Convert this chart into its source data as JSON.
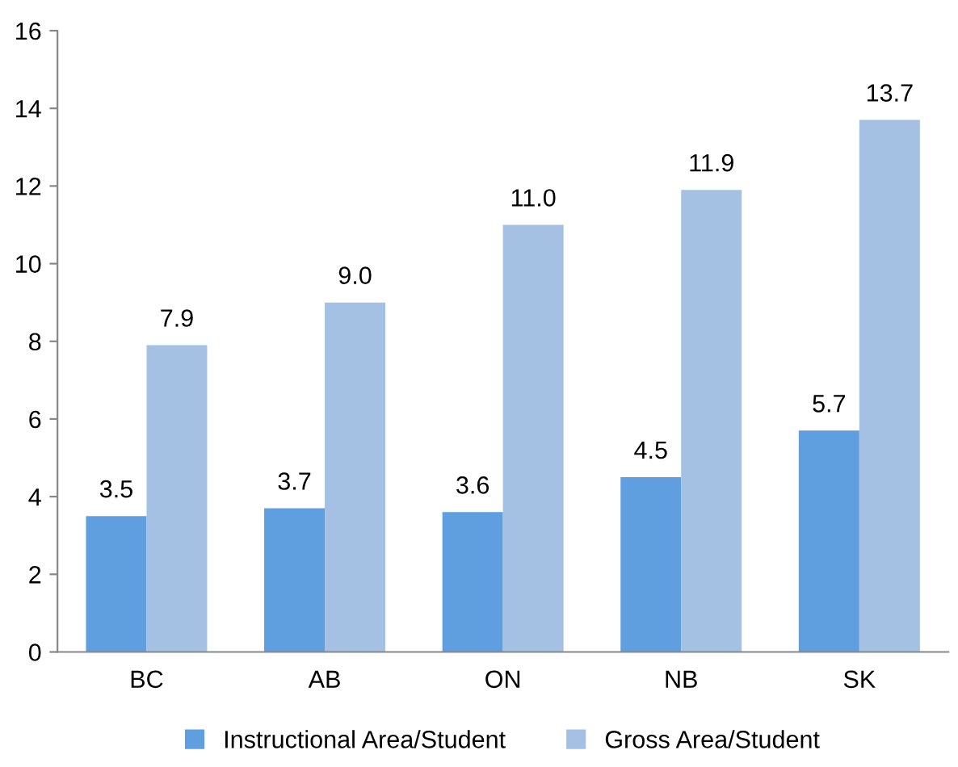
{
  "chart_data": {
    "type": "bar",
    "categories": [
      "BC",
      "AB",
      "ON",
      "NB",
      "SK"
    ],
    "series": [
      {
        "name": "Instructional Area/Student",
        "color": "#5f9fe0",
        "values": [
          3.5,
          3.7,
          3.6,
          4.5,
          5.7
        ]
      },
      {
        "name": "Gross Area/Student",
        "color": "#a4c0e2",
        "values": [
          7.9,
          9.0,
          11.0,
          11.9,
          13.7
        ]
      }
    ],
    "value_labels": [
      [
        "3.5",
        "3.7",
        "3.6",
        "4.5",
        "5.7"
      ],
      [
        "7.9",
        "9.0",
        "11.0",
        "11.9",
        "13.7"
      ]
    ],
    "ylim": [
      0,
      16
    ],
    "yticks": [
      0,
      2,
      4,
      6,
      8,
      10,
      12,
      14,
      16
    ],
    "grid": false,
    "legend": "bottom"
  }
}
